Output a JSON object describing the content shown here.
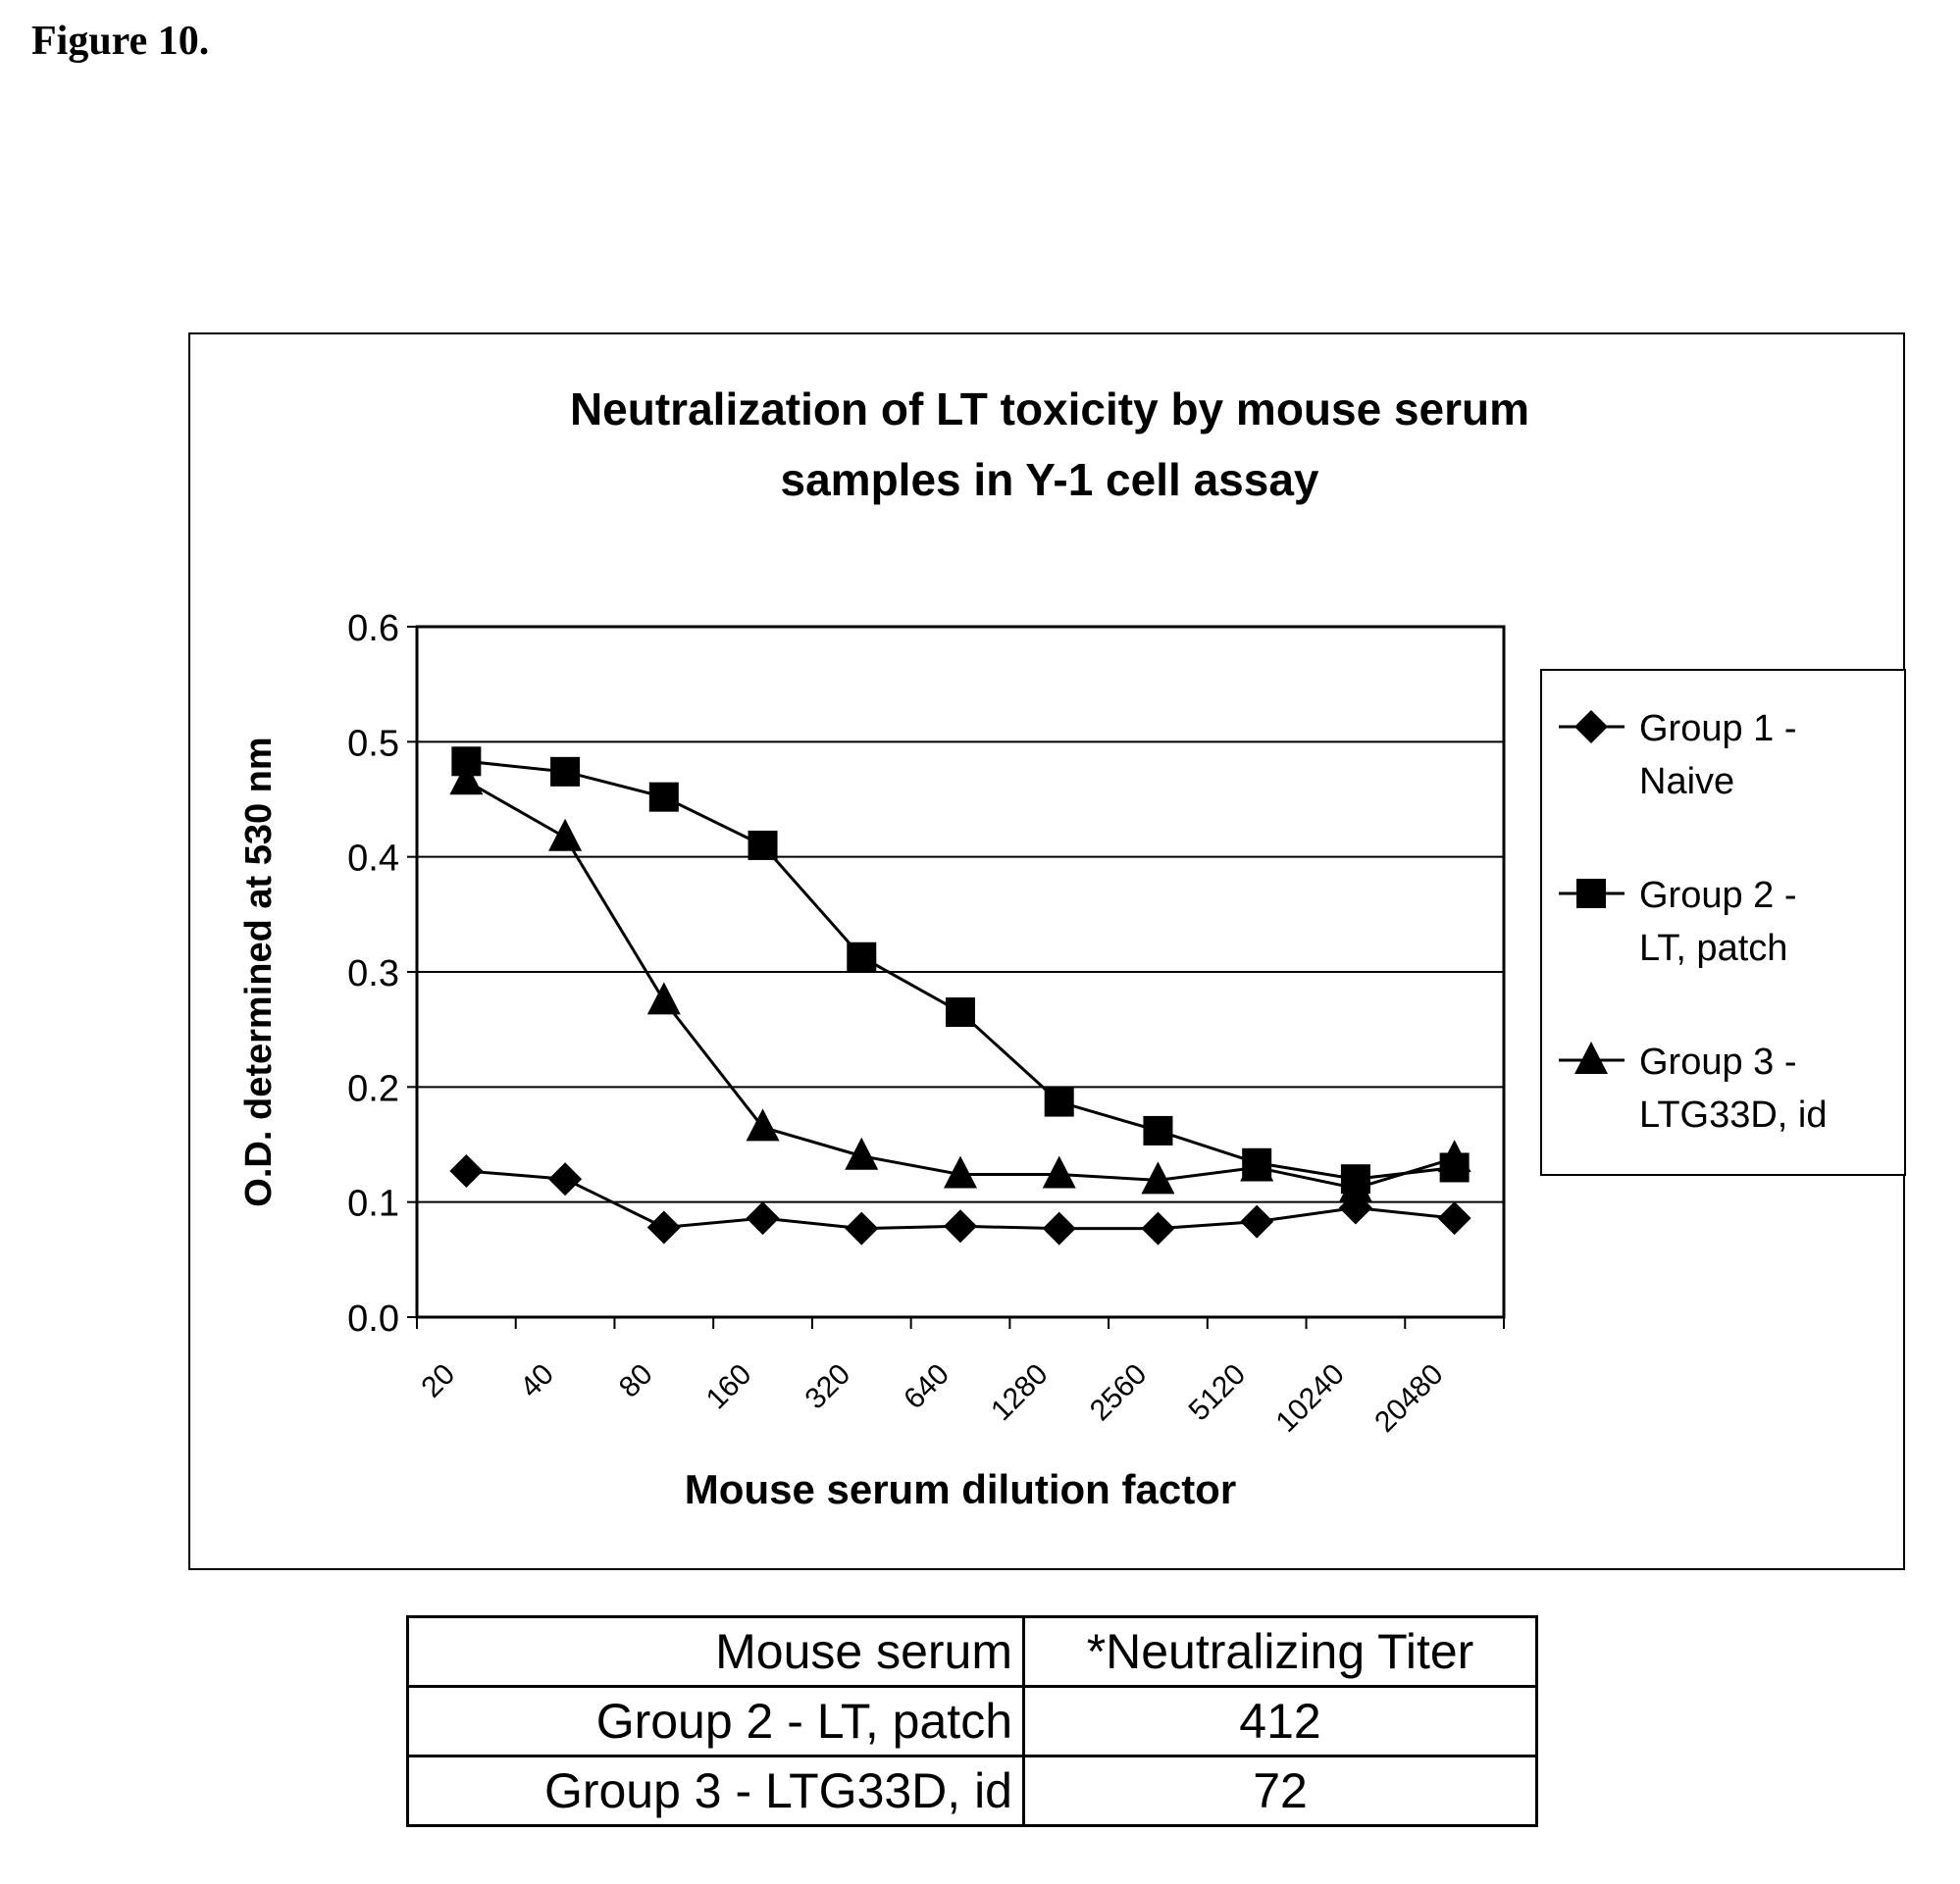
{
  "figure_label": "Figure 10.",
  "chart_data": {
    "type": "line",
    "title": "Neutralization of LT toxicity by mouse serum samples in Y-1 cell assay",
    "title_lines": [
      "Neutralization of LT toxicity by mouse serum",
      "samples in Y-1 cell assay"
    ],
    "xlabel": "Mouse serum dilution factor",
    "ylabel": "O.D. determined at 530 nm",
    "categories": [
      "20",
      "40",
      "80",
      "160",
      "320",
      "640",
      "1280",
      "2560",
      "5120",
      "10240",
      "20480"
    ],
    "ylim": [
      0,
      0.6
    ],
    "yticks": [
      "0.0",
      "0.1",
      "0.2",
      "0.3",
      "0.4",
      "0.5",
      "0.6"
    ],
    "grid": true,
    "legend_position": "right",
    "series": [
      {
        "name": "Group 1 - Naive",
        "legend_lines": [
          "Group 1 -",
          "Naive"
        ],
        "marker": "diamond",
        "values": [
          0.127,
          0.12,
          0.078,
          0.086,
          0.077,
          0.079,
          0.077,
          0.077,
          0.083,
          0.095,
          0.086
        ]
      },
      {
        "name": "Group 2 - LT, patch",
        "legend_lines": [
          "Group 2 -",
          "LT, patch"
        ],
        "marker": "square",
        "values": [
          0.483,
          0.474,
          0.452,
          0.41,
          0.313,
          0.265,
          0.187,
          0.162,
          0.134,
          0.12,
          0.13
        ]
      },
      {
        "name": "Group 3 - LTG33D, id",
        "legend_lines": [
          "Group 3 -",
          "LTG33D, id"
        ],
        "marker": "triangle",
        "values": [
          0.466,
          0.417,
          0.275,
          0.165,
          0.14,
          0.124,
          0.124,
          0.119,
          0.13,
          0.112,
          0.138
        ]
      }
    ]
  },
  "table": {
    "headers": [
      "Mouse serum",
      "*Neutralizing Titer"
    ],
    "rows": [
      [
        "Group 2 - LT, patch",
        "412"
      ],
      [
        "Group 3 - LTG33D, id",
        "72"
      ]
    ]
  }
}
